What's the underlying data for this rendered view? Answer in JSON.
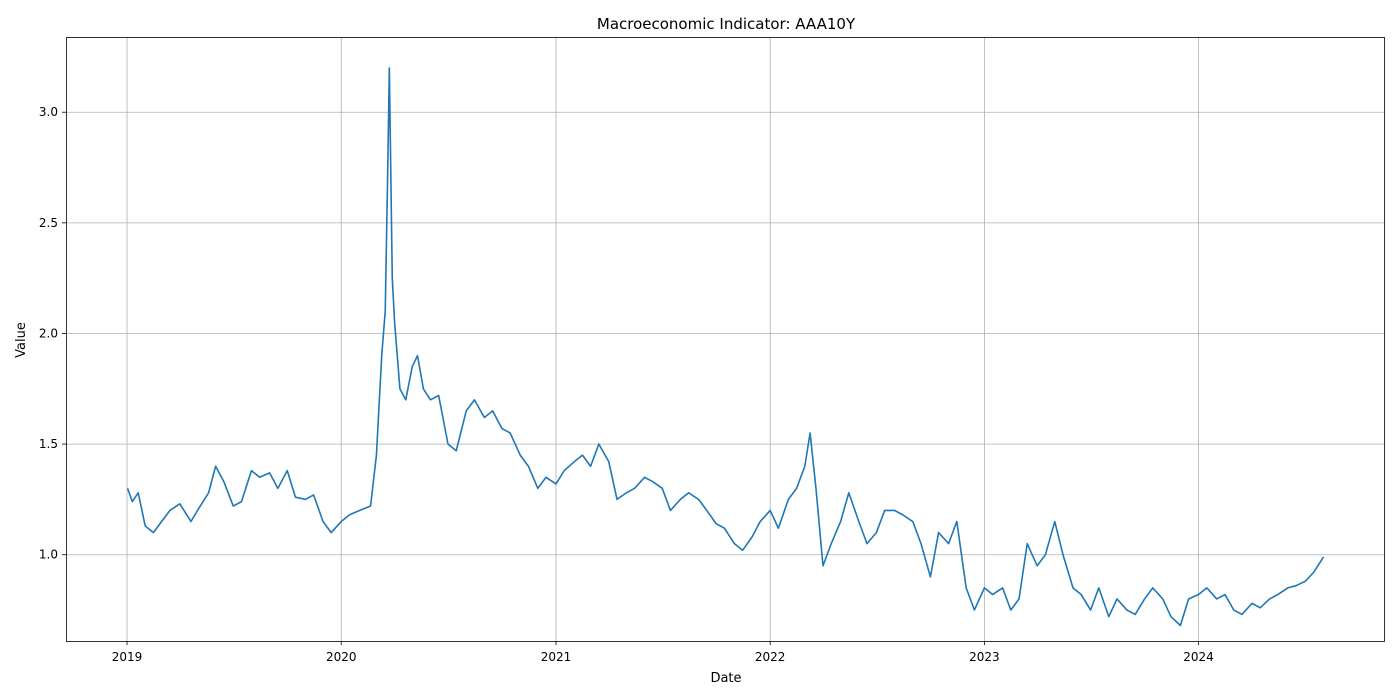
{
  "chart_data": {
    "type": "line",
    "title": "Macroeconomic Indicator: AAA10Y",
    "xlabel": "Date",
    "ylabel": "Value",
    "xlim": [
      "2018-09-19",
      "2024-11-12"
    ],
    "ylim": [
      0.61,
      3.34
    ],
    "x_ticks": [
      "2019-01-01",
      "2020-01-01",
      "2021-01-01",
      "2022-01-01",
      "2023-01-01",
      "2024-01-01"
    ],
    "x_tick_labels": [
      "2019",
      "2020",
      "2021",
      "2022",
      "2023",
      "2024"
    ],
    "y_ticks": [
      1.0,
      1.5,
      2.0,
      2.5,
      3.0
    ],
    "y_tick_labels": [
      "1.0",
      "1.5",
      "2.0",
      "2.5",
      "3.0"
    ],
    "grid": true,
    "color": "#1f77b4",
    "series": [
      {
        "x": [
          "2019-01-02",
          "2019-01-10",
          "2019-01-20",
          "2019-02-01",
          "2019-02-15",
          "2019-03-01",
          "2019-03-15",
          "2019-04-01",
          "2019-04-20",
          "2019-05-01",
          "2019-05-20",
          "2019-06-01",
          "2019-06-15",
          "2019-07-01",
          "2019-07-15",
          "2019-08-01",
          "2019-08-15",
          "2019-09-01",
          "2019-09-15",
          "2019-10-01",
          "2019-10-15",
          "2019-11-01",
          "2019-11-15",
          "2019-12-01",
          "2019-12-15",
          "2020-01-01",
          "2020-01-15",
          "2020-02-01",
          "2020-02-20",
          "2020-03-01",
          "2020-03-10",
          "2020-03-16",
          "2020-03-20",
          "2020-03-23",
          "2020-03-28",
          "2020-04-01",
          "2020-04-10",
          "2020-04-20",
          "2020-05-01",
          "2020-05-10",
          "2020-05-20",
          "2020-06-01",
          "2020-06-15",
          "2020-07-01",
          "2020-07-15",
          "2020-08-01",
          "2020-08-15",
          "2020-09-01",
          "2020-09-15",
          "2020-10-01",
          "2020-10-15",
          "2020-11-01",
          "2020-11-15",
          "2020-12-01",
          "2020-12-15",
          "2021-01-01",
          "2021-01-15",
          "2021-02-01",
          "2021-02-15",
          "2021-03-01",
          "2021-03-15",
          "2021-04-01",
          "2021-04-15",
          "2021-05-01",
          "2021-05-15",
          "2021-06-01",
          "2021-06-15",
          "2021-07-01",
          "2021-07-15",
          "2021-08-01",
          "2021-08-15",
          "2021-09-01",
          "2021-09-15",
          "2021-10-01",
          "2021-10-15",
          "2021-11-01",
          "2021-11-15",
          "2021-12-01",
          "2021-12-15",
          "2022-01-01",
          "2022-01-15",
          "2022-02-01",
          "2022-02-15",
          "2022-03-01",
          "2022-03-10",
          "2022-03-20",
          "2022-04-01",
          "2022-04-15",
          "2022-05-01",
          "2022-05-15",
          "2022-06-01",
          "2022-06-15",
          "2022-07-01",
          "2022-07-15",
          "2022-08-01",
          "2022-08-15",
          "2022-09-01",
          "2022-09-15",
          "2022-10-01",
          "2022-10-15",
          "2022-11-01",
          "2022-11-15",
          "2022-12-01",
          "2022-12-15",
          "2023-01-01",
          "2023-01-15",
          "2023-02-01",
          "2023-02-15",
          "2023-03-01",
          "2023-03-15",
          "2023-04-01",
          "2023-04-15",
          "2023-05-01",
          "2023-05-15",
          "2023-06-01",
          "2023-06-15",
          "2023-07-01",
          "2023-07-15",
          "2023-08-01",
          "2023-08-15",
          "2023-09-01",
          "2023-09-15",
          "2023-10-01",
          "2023-10-15",
          "2023-11-01",
          "2023-11-15",
          "2023-12-01",
          "2023-12-15",
          "2024-01-01",
          "2024-01-15",
          "2024-02-01",
          "2024-02-15",
          "2024-03-01",
          "2024-03-15",
          "2024-04-01",
          "2024-04-15",
          "2024-05-01",
          "2024-05-15",
          "2024-06-01",
          "2024-06-15",
          "2024-07-01",
          "2024-07-15",
          "2024-08-01"
        ],
        "y": [
          1.3,
          1.24,
          1.28,
          1.13,
          1.1,
          1.15,
          1.2,
          1.23,
          1.15,
          1.2,
          1.28,
          1.4,
          1.33,
          1.22,
          1.24,
          1.38,
          1.35,
          1.37,
          1.3,
          1.38,
          1.26,
          1.25,
          1.27,
          1.15,
          1.1,
          1.15,
          1.18,
          1.2,
          1.22,
          1.45,
          1.9,
          2.1,
          2.7,
          3.2,
          2.25,
          2.05,
          1.75,
          1.7,
          1.85,
          1.9,
          1.75,
          1.7,
          1.72,
          1.5,
          1.47,
          1.65,
          1.7,
          1.62,
          1.65,
          1.57,
          1.55,
          1.45,
          1.4,
          1.3,
          1.35,
          1.32,
          1.38,
          1.42,
          1.45,
          1.4,
          1.5,
          1.42,
          1.25,
          1.28,
          1.3,
          1.35,
          1.33,
          1.3,
          1.2,
          1.25,
          1.28,
          1.25,
          1.2,
          1.14,
          1.12,
          1.05,
          1.02,
          1.08,
          1.15,
          1.2,
          1.12,
          1.25,
          1.3,
          1.4,
          1.55,
          1.3,
          0.95,
          1.05,
          1.15,
          1.28,
          1.15,
          1.05,
          1.1,
          1.2,
          1.2,
          1.18,
          1.15,
          1.05,
          0.9,
          1.1,
          1.05,
          1.15,
          0.85,
          0.75,
          0.85,
          0.82,
          0.85,
          0.75,
          0.8,
          1.05,
          0.95,
          1.0,
          1.15,
          1.0,
          0.85,
          0.82,
          0.75,
          0.85,
          0.72,
          0.8,
          0.75,
          0.73,
          0.8,
          0.85,
          0.8,
          0.72,
          0.68,
          0.8,
          0.82,
          0.85,
          0.8,
          0.82,
          0.75,
          0.73,
          0.78,
          0.76,
          0.8,
          0.82,
          0.85,
          0.86,
          0.88,
          0.92,
          0.99
        ]
      }
    ]
  }
}
